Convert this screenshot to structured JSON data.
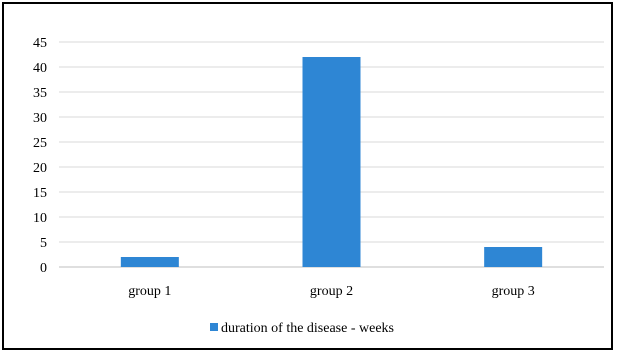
{
  "chart_data": {
    "type": "bar",
    "categories": [
      "group 1",
      "group 2",
      "group 3"
    ],
    "series": [
      {
        "name": "duration of the disease - weeks",
        "values": [
          2,
          42,
          4
        ]
      }
    ],
    "ylim": [
      0,
      45
    ],
    "yticks": [
      0,
      5,
      10,
      15,
      20,
      25,
      30,
      35,
      40,
      45
    ],
    "ytick_labels": [
      "0",
      "5",
      "10",
      "15",
      "20",
      "25",
      "30",
      "35",
      "40",
      "45"
    ],
    "grid": true,
    "legend_position": "bottom",
    "colors": {
      "bar": "#2E86D4",
      "grid": "#D9D9D9",
      "axis": "#BFBFBF",
      "border": "#000000"
    }
  }
}
